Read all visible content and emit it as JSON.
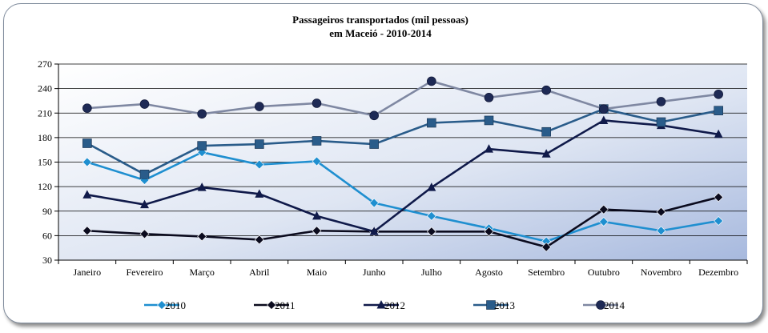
{
  "chart_data": {
    "type": "line",
    "title": "Passageiros transportados (mil pessoas)",
    "subtitle": "em Maceió - 2010-2014",
    "categories": [
      "Janeiro",
      "Fevereiro",
      "Março",
      "Abril",
      "Maio",
      "Junho",
      "Julho",
      "Agosto",
      "Setembro",
      "Outubro",
      "Novembro",
      "Dezembro"
    ],
    "ylim": [
      30,
      270
    ],
    "yticks": [
      30,
      60,
      90,
      120,
      150,
      180,
      210,
      240,
      270
    ],
    "grid": true,
    "legend_position": "bottom",
    "series": [
      {
        "name": "2010",
        "color": "#1f8fd0",
        "marker": "diamond",
        "values": [
          150,
          128,
          162,
          147,
          151,
          100,
          84,
          69,
          53,
          77,
          66,
          78
        ]
      },
      {
        "name": "2011",
        "color": "#0b0b1e",
        "marker": "diamond",
        "values": [
          66,
          62,
          59,
          55,
          66,
          65,
          65,
          65,
          46,
          92,
          89,
          107
        ]
      },
      {
        "name": "2012",
        "color": "#101a4a",
        "marker": "triangle",
        "values": [
          110,
          98,
          119,
          111,
          84,
          65,
          119,
          166,
          160,
          201,
          195,
          184
        ]
      },
      {
        "name": "2013",
        "color": "#2a5c8a",
        "marker": "square",
        "values": [
          173,
          135,
          170,
          172,
          176,
          172,
          198,
          201,
          187,
          215,
          199,
          213
        ]
      },
      {
        "name": "2014",
        "color": "#7f88a2",
        "marker": "circle",
        "values": [
          216,
          221,
          209,
          218,
          222,
          207,
          249,
          229,
          238,
          215,
          224,
          233
        ]
      }
    ]
  }
}
